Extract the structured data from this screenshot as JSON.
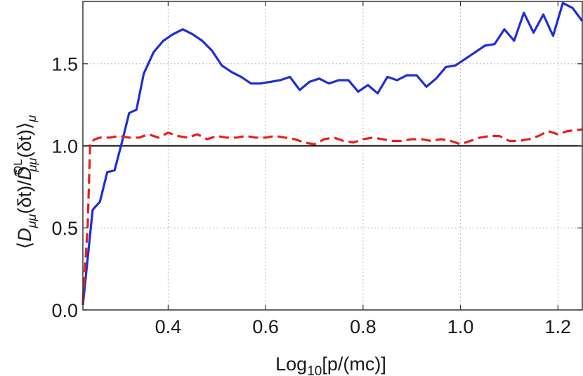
{
  "chart_data": {
    "type": "line",
    "title": "",
    "xlabel": "Log",
    "xlabel_sub": "10",
    "xlabel_rest": "[p/(mc)]",
    "ylabel": "⟨D_μμ(δt)/D̃_μμ^QL(δt)⟩_μ",
    "xlim": [
      0.225,
      1.25
    ],
    "ylim": [
      0.0,
      1.88
    ],
    "xticks": [
      0.4,
      0.6,
      0.8,
      1.0,
      1.2
    ],
    "xtick_labels": [
      "0.4",
      "0.6",
      "0.8",
      "1.0",
      "1.2"
    ],
    "yticks": [
      0.0,
      0.5,
      1.0,
      1.5
    ],
    "ytick_labels": [
      "0.0",
      "0.5",
      "1.0",
      "1.5"
    ],
    "grid": true,
    "reference_line": {
      "y": 1.0,
      "color": "#000000"
    },
    "colors": {
      "blue": "#1f2ddb",
      "red": "#e8201d"
    },
    "series": [
      {
        "style": "solid",
        "color": "#1f2ddb",
        "x": [
          0.225,
          0.245,
          0.26,
          0.275,
          0.29,
          0.305,
          0.32,
          0.335,
          0.35,
          0.37,
          0.39,
          0.41,
          0.43,
          0.45,
          0.47,
          0.49,
          0.51,
          0.53,
          0.55,
          0.57,
          0.59,
          0.61,
          0.63,
          0.65,
          0.67,
          0.69,
          0.71,
          0.73,
          0.75,
          0.77,
          0.79,
          0.81,
          0.83,
          0.85,
          0.87,
          0.89,
          0.91,
          0.93,
          0.95,
          0.97,
          0.99,
          1.01,
          1.03,
          1.05,
          1.07,
          1.09,
          1.11,
          1.13,
          1.15,
          1.17,
          1.19,
          1.21,
          1.23,
          1.25
        ],
        "y": [
          0.03,
          0.61,
          0.66,
          0.84,
          0.85,
          1.02,
          1.2,
          1.22,
          1.44,
          1.57,
          1.64,
          1.68,
          1.71,
          1.68,
          1.64,
          1.58,
          1.49,
          1.45,
          1.42,
          1.38,
          1.38,
          1.39,
          1.4,
          1.42,
          1.34,
          1.39,
          1.41,
          1.38,
          1.4,
          1.4,
          1.33,
          1.37,
          1.32,
          1.42,
          1.4,
          1.43,
          1.43,
          1.36,
          1.41,
          1.48,
          1.49,
          1.53,
          1.57,
          1.61,
          1.62,
          1.71,
          1.64,
          1.81,
          1.69,
          1.8,
          1.67,
          1.87,
          1.84,
          1.76
        ]
      },
      {
        "style": "dashed",
        "color": "#e8201d",
        "x": [
          0.225,
          0.235,
          0.24,
          0.25,
          0.26,
          0.28,
          0.3,
          0.32,
          0.34,
          0.36,
          0.38,
          0.4,
          0.42,
          0.44,
          0.46,
          0.48,
          0.5,
          0.52,
          0.54,
          0.56,
          0.58,
          0.6,
          0.62,
          0.64,
          0.66,
          0.68,
          0.7,
          0.72,
          0.74,
          0.76,
          0.78,
          0.8,
          0.82,
          0.84,
          0.86,
          0.88,
          0.9,
          0.92,
          0.94,
          0.96,
          0.98,
          1.0,
          1.02,
          1.04,
          1.06,
          1.08,
          1.1,
          1.12,
          1.14,
          1.16,
          1.18,
          1.2,
          1.22,
          1.25
        ],
        "y": [
          0.05,
          0.52,
          1.02,
          1.04,
          1.05,
          1.05,
          1.06,
          1.05,
          1.05,
          1.07,
          1.05,
          1.08,
          1.06,
          1.05,
          1.07,
          1.04,
          1.06,
          1.05,
          1.05,
          1.06,
          1.05,
          1.05,
          1.06,
          1.05,
          1.04,
          1.02,
          1.01,
          1.04,
          1.05,
          1.03,
          1.02,
          1.04,
          1.05,
          1.04,
          1.03,
          1.03,
          1.04,
          1.04,
          1.03,
          1.04,
          1.03,
          1.01,
          1.03,
          1.05,
          1.06,
          1.06,
          1.03,
          1.03,
          1.04,
          1.06,
          1.09,
          1.07,
          1.09,
          1.1
        ]
      }
    ]
  }
}
